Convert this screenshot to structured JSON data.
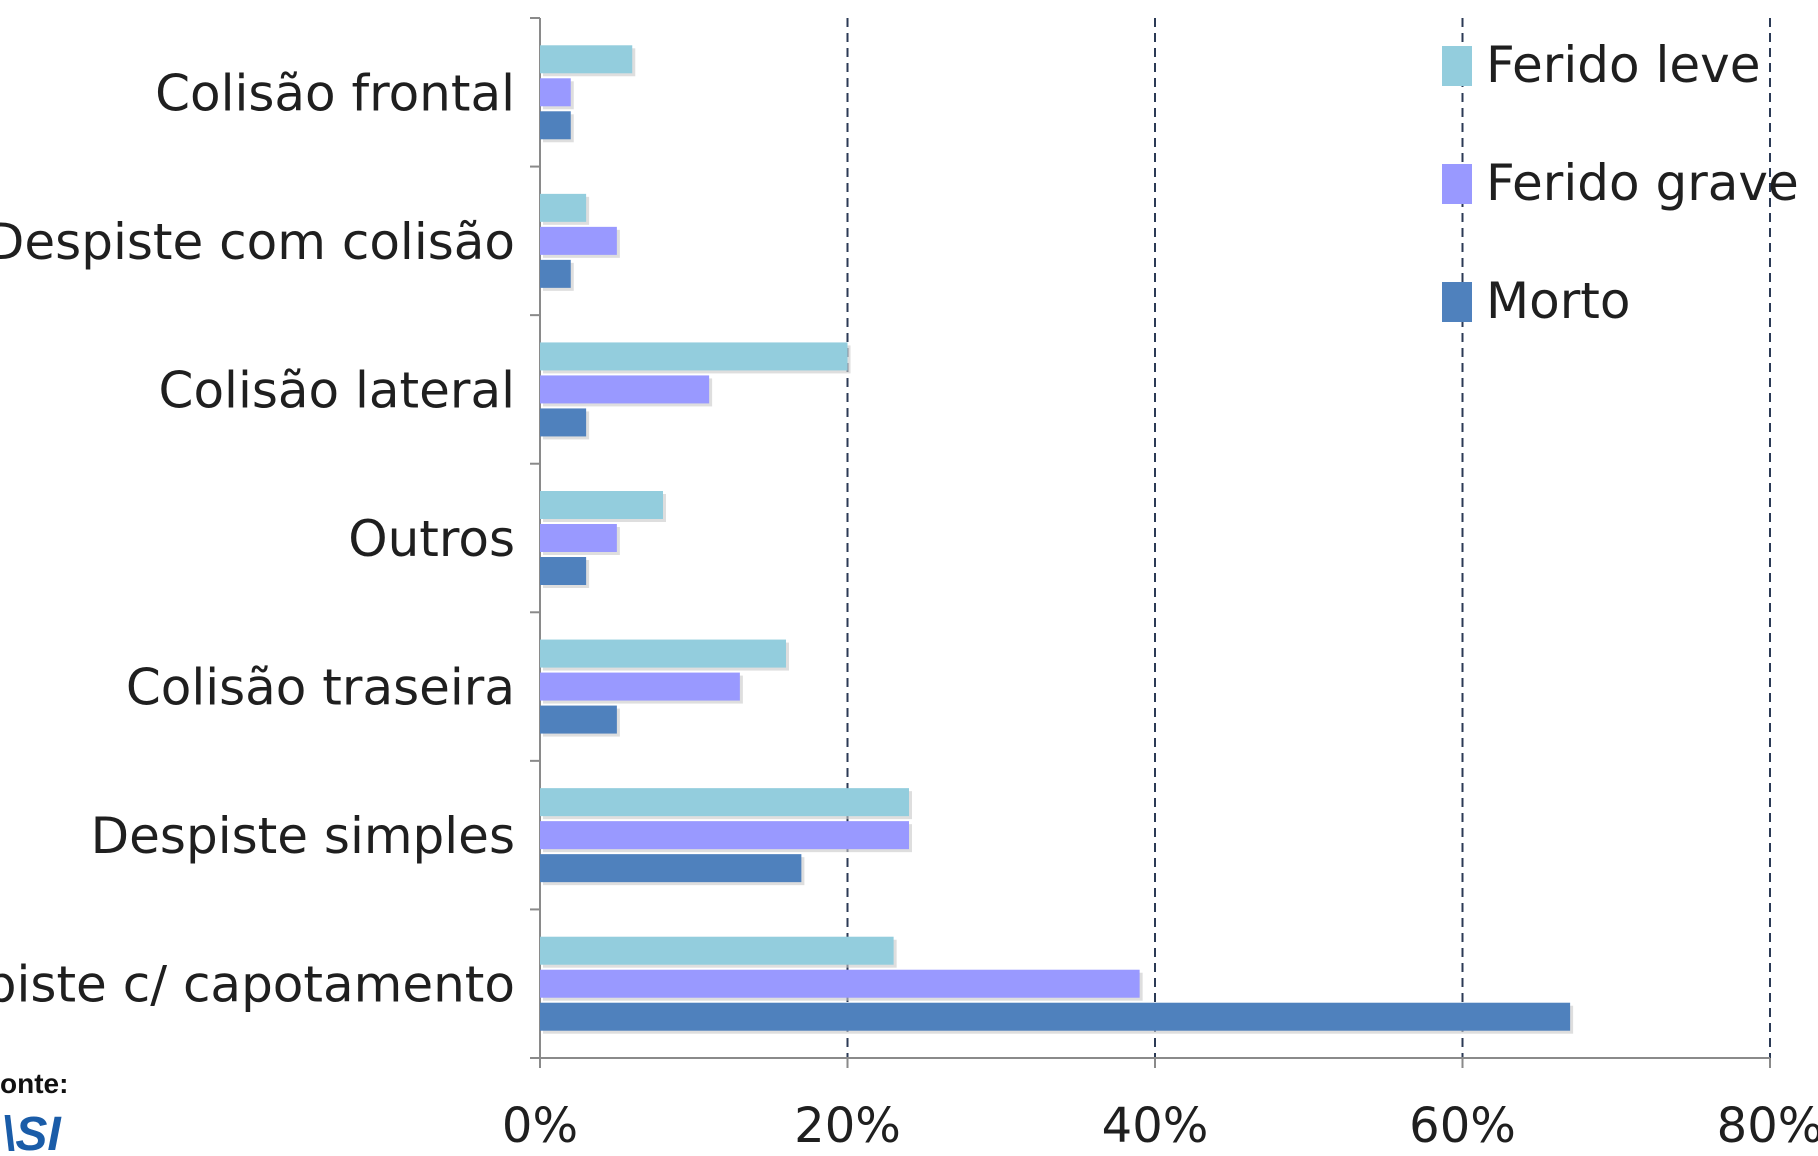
{
  "chart_data": {
    "type": "bar",
    "orientation": "horizontal",
    "categories": [
      "Colisão frontal",
      "Despiste com colisão",
      "Colisão lateral",
      "Outros",
      "Colisão traseira",
      "Despiste simples",
      "spiste c/ capotamento"
    ],
    "series": [
      {
        "name": "Ferido leve",
        "color": "#93cddd",
        "values": [
          6,
          3,
          20,
          8,
          16,
          24,
          23
        ]
      },
      {
        "name": "Ferido grave",
        "color": "#9999ff",
        "values": [
          2,
          5,
          11,
          5,
          13,
          24,
          39
        ]
      },
      {
        "name": "Morto",
        "color": "#4f81bd",
        "values": [
          2,
          2,
          3,
          3,
          5,
          17,
          67
        ]
      }
    ],
    "x_ticks": [
      "0%",
      "20%",
      "40%",
      "60%",
      "80%"
    ],
    "xlim": [
      0,
      80
    ],
    "grid": "vertical dashed",
    "legend_position": "top-right"
  },
  "source": {
    "label": "onte:",
    "logo_text": "\\SI"
  }
}
